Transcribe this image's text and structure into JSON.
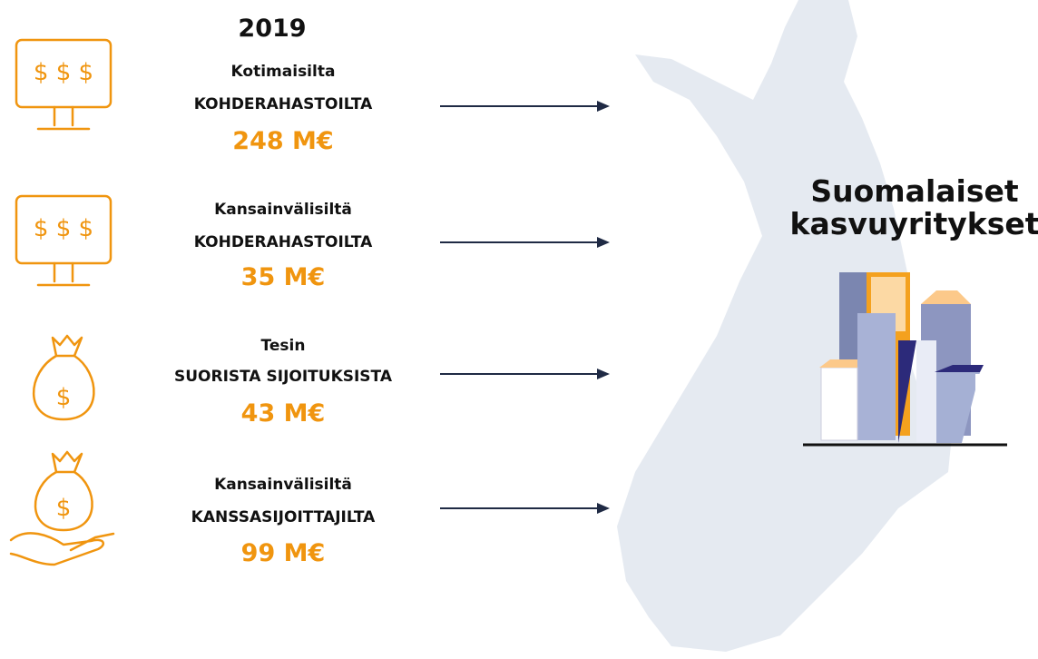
{
  "header": {
    "title": "2019"
  },
  "items": [
    {
      "line1": "Kotimaisilta",
      "line2": "KOHDERAHASTOILTA",
      "amount": "248 M€"
    },
    {
      "line1": "Kansainvälisiltä",
      "line2": "KOHDERAHASTOILTA",
      "amount": "35 M€"
    },
    {
      "line1": "Tesin",
      "line2": "SUORISTA SIJOITUKSISTA",
      "amount": "43 M€"
    },
    {
      "line1": "Kansainvälisiltä",
      "line2": "KANSSASIJOITTAJILTA",
      "amount": "99 M€"
    }
  ],
  "target": {
    "line1": "Suomalaiset",
    "line2": "kasvuyritykset"
  }
}
